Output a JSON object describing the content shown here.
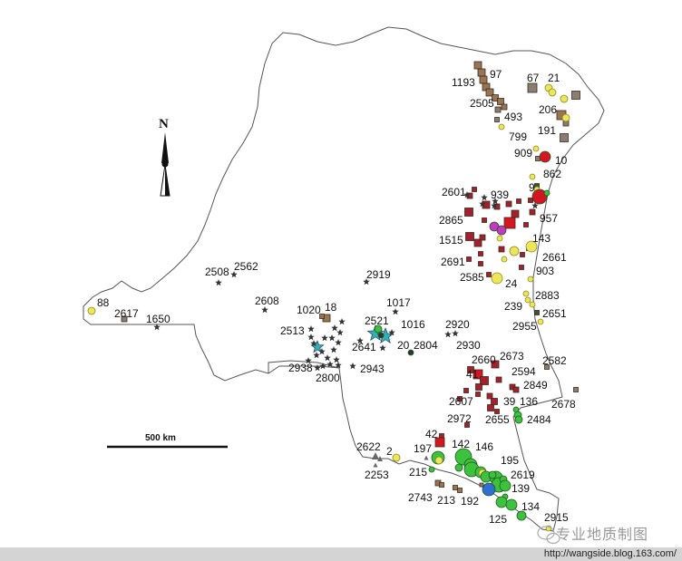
{
  "map": {
    "north_label": "N",
    "scale_label": "500 km",
    "watermark": "专业地质制图",
    "url": "http://wangside.blog.163.com/",
    "colors": {
      "boundary": "#555555",
      "brown_square": "#9a7552",
      "gray_square": "#8a7e72",
      "red_square": "#a3202c",
      "bright_red": "#d41622",
      "yellow_circle": "#eee65a",
      "green_circle": "#3cc23c",
      "blue_circle": "#2f6fd1",
      "magenta_circle": "#c23ac2",
      "star": "#333333",
      "cyan_star": "#2fb3b0",
      "triangle": "#666666",
      "dark_green_square": "#2e5a2e"
    },
    "sites": [
      "1193",
      "97",
      "67",
      "21",
      "2505",
      "493",
      "206",
      "799",
      "191",
      "909",
      "10",
      "862",
      "9",
      "2601",
      "939",
      "2865",
      "957",
      "1515",
      "143",
      "2691",
      "2661",
      "903",
      "2585",
      "24",
      "2883",
      "239",
      "2651",
      "2955",
      "2508",
      "2562",
      "2919",
      "2608",
      "1017",
      "1020",
      "18",
      "2521",
      "1016",
      "2920",
      "2513",
      "2641",
      "20",
      "2804",
      "2930",
      "2938",
      "2943",
      "2800",
      "88",
      "2617",
      "1650",
      "2660",
      "2673",
      "2582",
      "41",
      "2594",
      "2849",
      "2607",
      "39",
      "136",
      "2678",
      "2972",
      "2655",
      "2484",
      "42",
      "142",
      "146",
      "197",
      "2622",
      "2",
      "195",
      "215",
      "2253",
      "2619",
      "139",
      "2743",
      "213",
      "192",
      "134",
      "125",
      "2915"
    ]
  }
}
